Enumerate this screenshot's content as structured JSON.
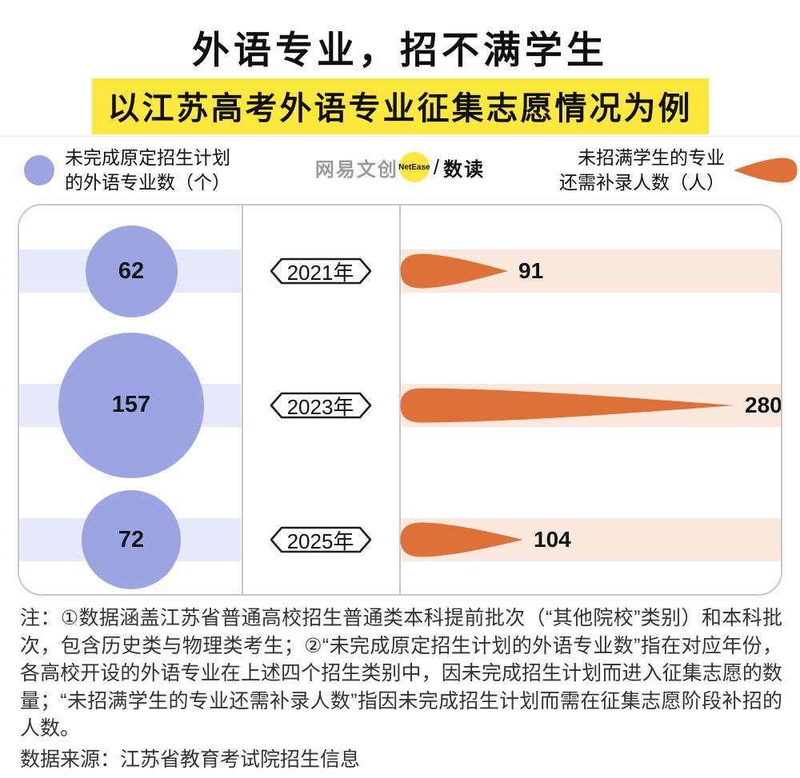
{
  "title": "外语专业，招不满学生",
  "subtitle": "以江苏高考外语专业征集志愿情况为例",
  "legend": {
    "left_label": "未完成原定招生计划\n的外语专业数（个）",
    "left_icon": "purple-circle-icon",
    "right_label": "未招满学生的专业\n还需补录人数（人）",
    "right_icon": "orange-comet-icon"
  },
  "logo": {
    "brand": "网易文创",
    "badge": "NetEase",
    "separator": "/",
    "product": "数读"
  },
  "chart_data": {
    "type": "bar",
    "categories": [
      "2021年",
      "2023年",
      "2025年"
    ],
    "series": [
      {
        "name": "未完成原定招生计划的外语专业数（个）",
        "style": "bubble",
        "values": [
          62,
          157,
          72
        ],
        "color": "#9AA5E1",
        "band_color": "#E7EAF8"
      },
      {
        "name": "未招满学生的专业还需补录人数（人）",
        "style": "comet",
        "values": [
          91,
          280,
          104
        ],
        "color": "#DE7138",
        "band_color": "#FBE9DD"
      }
    ],
    "x_range_comet": [
      0,
      300
    ],
    "legend_position": "top",
    "grid": false
  },
  "notes": "注：①数据涵盖江苏省普通高校招生普通类本科提前批次（“其他院校”类别）和本科批次，包含历史类与物理类考生；②“未完成原定招生计划的外语专业数”指在对应年份，各高校开设的外语专业在上述四个招生类别中，因未完成招生计划而进入征集志愿的数量；“未招满学生的专业还需补录人数”指因未完成招生计划而需在征集志愿阶段补招的人数。",
  "source": "数据来源：江苏省教育考试院招生信息",
  "colors": {
    "highlight_yellow": "#FFE83D",
    "bubble_purple": "#9AA5E1",
    "band_lavender": "#E7EAF8",
    "comet_orange": "#DE7138",
    "band_peach": "#FBE9DD",
    "box_border": "#c9c9c9"
  }
}
